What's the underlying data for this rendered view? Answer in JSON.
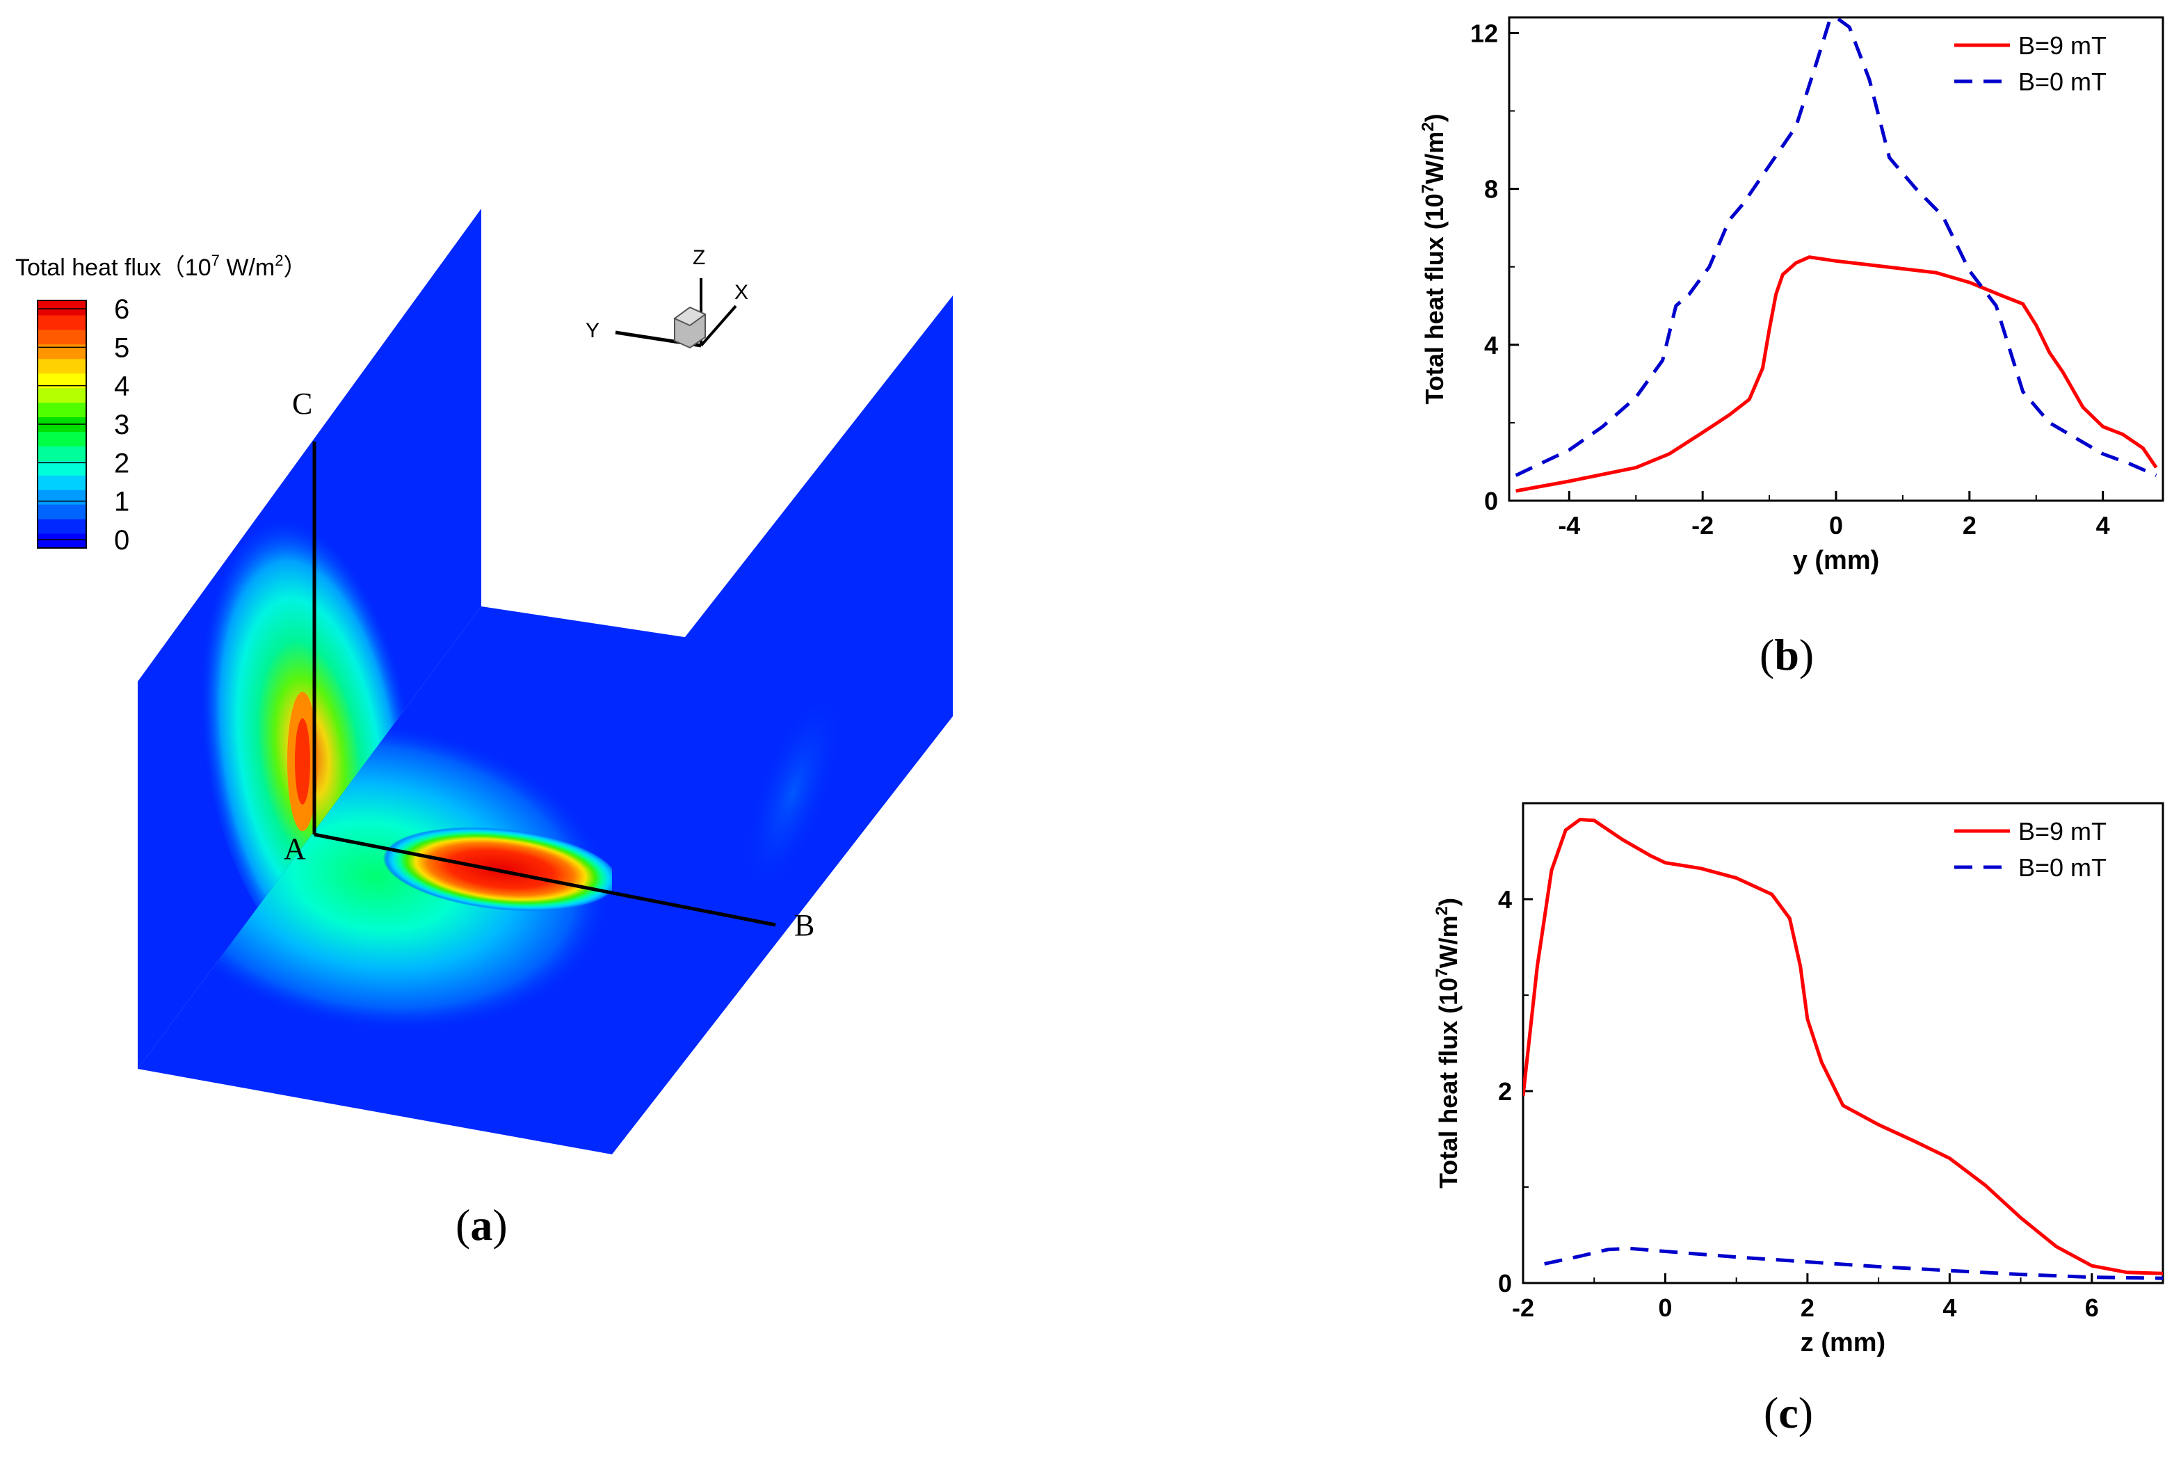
{
  "panel_a": {
    "caption_open": "(",
    "caption_letter": "a",
    "caption_close": ")",
    "colorbar": {
      "title_pre": "Total heat flux（10",
      "title_exp": "7",
      "title_mid": " W/m",
      "title_exp2": "2",
      "title_post": "）",
      "ticks": [
        "6",
        "5",
        "4",
        "3",
        "2",
        "1",
        "0"
      ],
      "colors": [
        "#0000ff",
        "#0028ff",
        "#0064ff",
        "#009bff",
        "#00d0ff",
        "#00ffd8",
        "#00ff9a",
        "#00ff45",
        "#00e000",
        "#50ff00",
        "#b4ff00",
        "#ffff00",
        "#ffd200",
        "#ff9600",
        "#ff5a00",
        "#ff2a00",
        "#e60000"
      ]
    },
    "axis_triad": {
      "z": "Z",
      "x": "X",
      "y": "Y"
    },
    "points": {
      "a": "A",
      "b": "B",
      "c": "C"
    }
  },
  "chart_data": [
    {
      "id": "b",
      "type": "line",
      "caption_open": "(",
      "caption_letter": "b",
      "caption_close": ")",
      "xlabel": "y (mm)",
      "ylabel_pre": "Total heat flux (10",
      "ylabel_exp": "7",
      "ylabel_mid": "W/m",
      "ylabel_exp2": "2",
      "ylabel_post": ")",
      "xlim": [
        -4.9,
        4.9
      ],
      "ylim": [
        0,
        12.4
      ],
      "xticks": [
        -4,
        -2,
        0,
        2,
        4
      ],
      "xtick_labels": [
        "-4",
        "-2",
        "0",
        "2",
        "4"
      ],
      "yticks": [
        0,
        4,
        8,
        12
      ],
      "ytick_labels": [
        "0",
        "4",
        "8",
        "12"
      ],
      "legend_position": "top-right",
      "series": [
        {
          "name": "B=9 mT",
          "color": "#ff0000",
          "dash": "solid",
          "x": [
            -4.8,
            -4.0,
            -3.0,
            -2.5,
            -2.0,
            -1.6,
            -1.3,
            -1.1,
            -1.0,
            -0.9,
            -0.8,
            -0.6,
            -0.4,
            0.0,
            0.5,
            1.0,
            1.5,
            2.0,
            2.5,
            2.8,
            3.0,
            3.2,
            3.4,
            3.7,
            4.0,
            4.3,
            4.6,
            4.8
          ],
          "y": [
            0.25,
            0.5,
            0.85,
            1.2,
            1.75,
            2.2,
            2.6,
            3.4,
            4.4,
            5.3,
            5.8,
            6.1,
            6.25,
            6.15,
            6.05,
            5.95,
            5.85,
            5.6,
            5.25,
            5.05,
            4.5,
            3.8,
            3.3,
            2.4,
            1.9,
            1.7,
            1.35,
            0.85
          ]
        },
        {
          "name": "B=0 mT",
          "color": "#0000cc",
          "dash": "dashed",
          "x": [
            -4.8,
            -4.0,
            -3.5,
            -3.0,
            -2.6,
            -2.4,
            -2.2,
            -1.9,
            -1.6,
            -1.4,
            -1.0,
            -0.6,
            -0.3,
            -0.1,
            0.0,
            0.2,
            0.5,
            0.8,
            1.2,
            1.6,
            2.0,
            2.4,
            2.8,
            3.2,
            3.6,
            4.0,
            4.4,
            4.8
          ],
          "y": [
            0.65,
            1.3,
            1.9,
            2.65,
            3.6,
            5.0,
            5.3,
            6.0,
            7.2,
            7.6,
            8.6,
            9.6,
            11.2,
            12.3,
            12.4,
            12.15,
            10.8,
            8.8,
            8.0,
            7.3,
            5.9,
            5.0,
            2.8,
            2.0,
            1.6,
            1.2,
            0.95,
            0.65
          ]
        }
      ]
    },
    {
      "id": "c",
      "type": "line",
      "caption_open": "(",
      "caption_letter": "c",
      "caption_close": ")",
      "xlabel": "z (mm)",
      "ylabel_pre": "Total heat flux (10",
      "ylabel_exp": "7",
      "ylabel_mid": "W/m",
      "ylabel_exp2": "2",
      "ylabel_post": ")",
      "xlim": [
        -2,
        7
      ],
      "ylim": [
        0,
        5
      ],
      "xticks": [
        -2,
        0,
        2,
        4,
        6
      ],
      "xtick_labels": [
        "-2",
        "0",
        "2",
        "4",
        "6"
      ],
      "yticks": [
        0,
        2,
        4
      ],
      "ytick_labels": [
        "0",
        "2",
        "4"
      ],
      "legend_position": "top-right",
      "series": [
        {
          "name": "B=9 mT",
          "color": "#ff0000",
          "dash": "solid",
          "x": [
            -2.0,
            -1.8,
            -1.6,
            -1.4,
            -1.2,
            -1.0,
            -0.6,
            -0.2,
            0.0,
            0.5,
            1.0,
            1.5,
            1.75,
            1.9,
            2.0,
            2.2,
            2.5,
            3.0,
            3.5,
            4.0,
            4.5,
            5.0,
            5.5,
            6.0,
            6.5,
            7.0
          ],
          "y": [
            1.95,
            3.3,
            4.3,
            4.72,
            4.83,
            4.82,
            4.62,
            4.45,
            4.38,
            4.32,
            4.22,
            4.05,
            3.8,
            3.3,
            2.75,
            2.3,
            1.85,
            1.65,
            1.48,
            1.3,
            1.02,
            0.68,
            0.38,
            0.18,
            0.11,
            0.1
          ]
        },
        {
          "name": "B=0 mT",
          "color": "#0000cc",
          "dash": "dashed",
          "x": [
            -1.7,
            -1.2,
            -0.8,
            -0.5,
            0.0,
            0.5,
            1.0,
            2.0,
            3.0,
            4.0,
            5.0,
            6.0,
            7.0
          ],
          "y": [
            0.2,
            0.28,
            0.35,
            0.36,
            0.33,
            0.3,
            0.27,
            0.22,
            0.17,
            0.13,
            0.09,
            0.06,
            0.05
          ]
        }
      ]
    }
  ]
}
